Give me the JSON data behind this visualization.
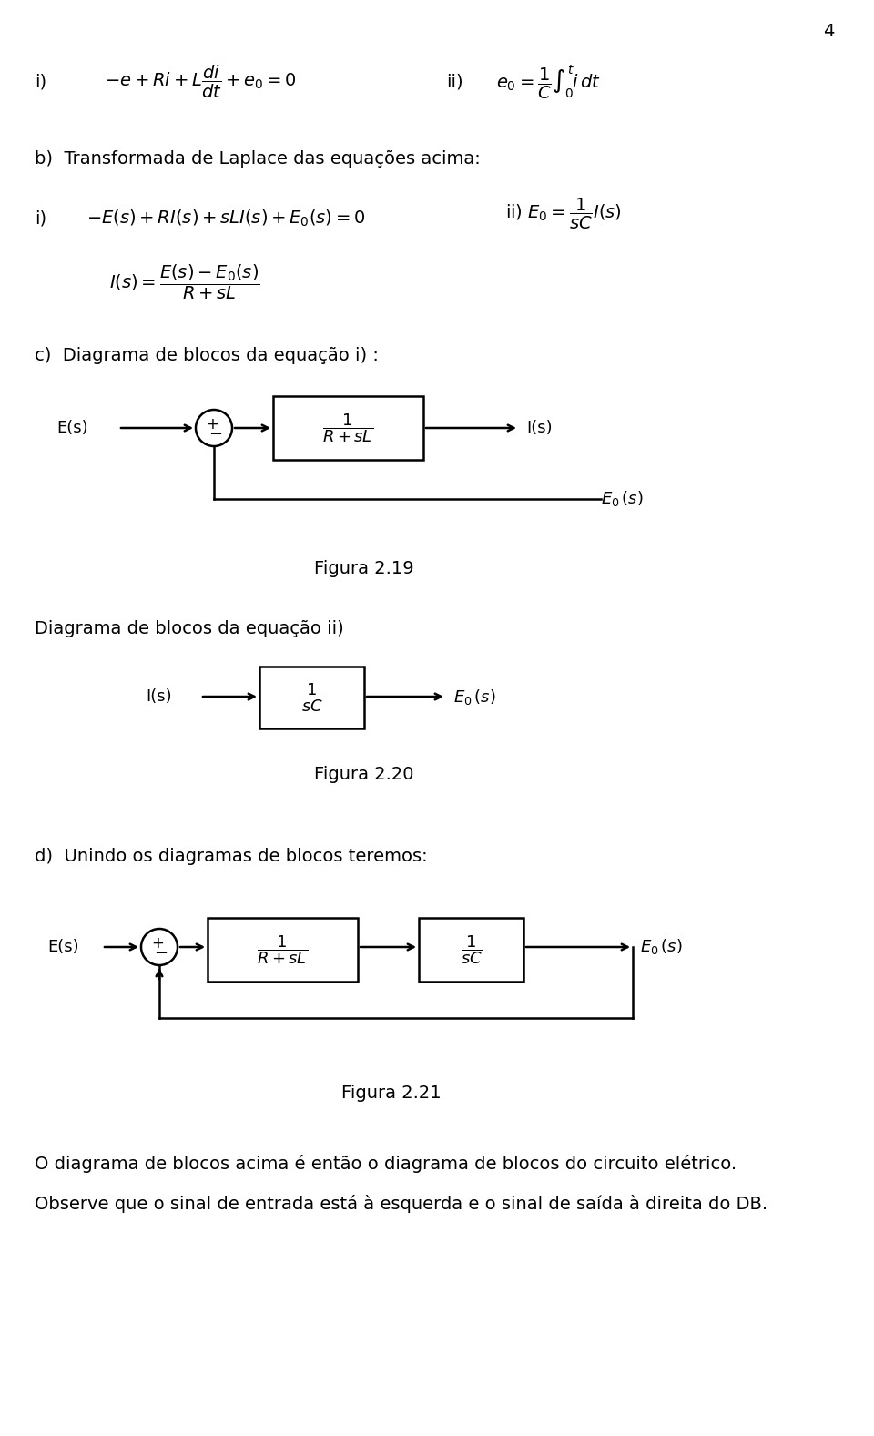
{
  "page_num": "4",
  "bg_color": "#ffffff",
  "text_color": "#000000",
  "figsize": [
    9.6,
    15.77
  ],
  "dpi": 100,
  "section_b_title": "b)  Transformada de Laplace das equações acima:",
  "section_c_title": "c)  Diagrama de blocos da equação i) :",
  "figura_19": "Figura 2.19",
  "diagrama_ii_title": "Diagrama de blocos da equação ii)",
  "figura_20": "Figura 2.20",
  "section_d_title": "d)  Unindo os diagramas de blocos teremos:",
  "figura_21": "Figura 2.21",
  "footer_line1": "O diagrama de blocos acima é então o diagrama de blocos do circuito elétrico.",
  "footer_line2": "Observe que o sinal de entrada está à esquerda e o sinal de saída à direita do DB."
}
